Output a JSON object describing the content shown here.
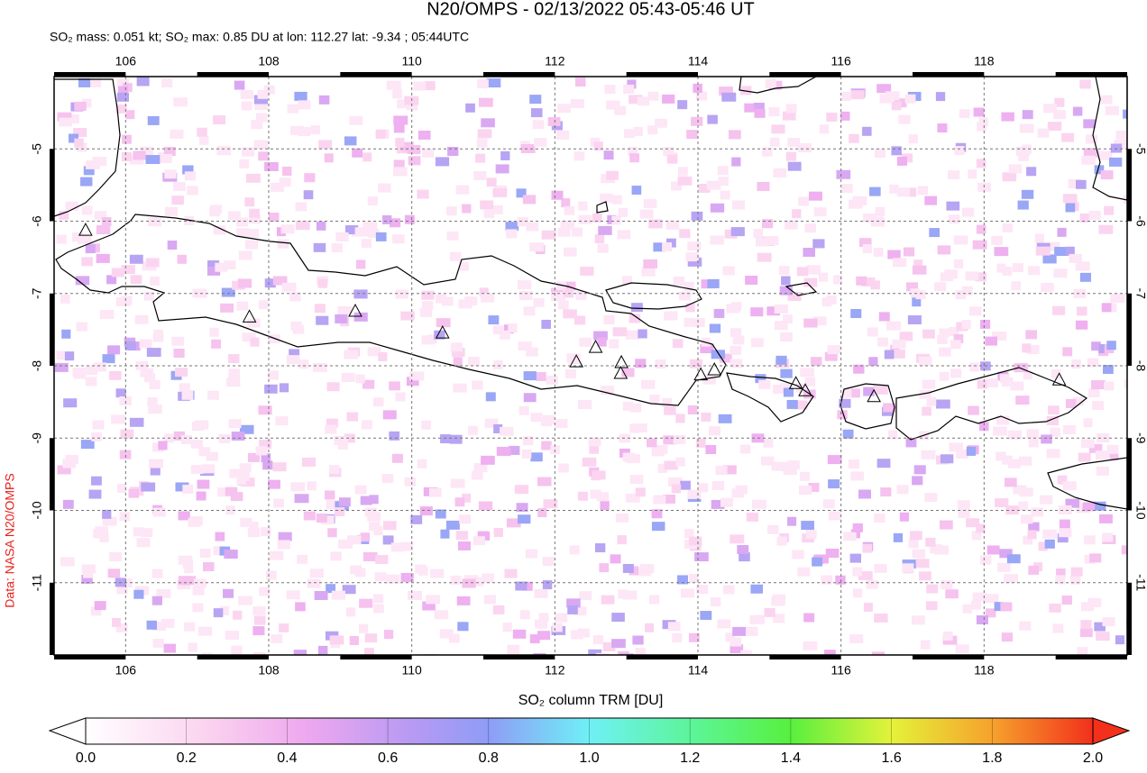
{
  "chart_data": {
    "type": "map",
    "title": "N20/OMPS - 02/13/2022 05:43-05:46 UT",
    "subtitle": "SO₂ mass: 0.051 kt; SO₂ max: 0.85 DU at lon: 112.27 lat: -9.34 ; 05:44UTC",
    "credit": "Data: NASA N20/OMPS",
    "colorbar_label": "SO₂ column TRM [DU]",
    "xlim": [
      105,
      120
    ],
    "ylim": [
      -12,
      -4
    ],
    "xticks": [
      106,
      108,
      110,
      112,
      114,
      116,
      118
    ],
    "yticks": [
      -5,
      -6,
      -7,
      -8,
      -9,
      -10,
      -11
    ],
    "grid": true,
    "clim": [
      0,
      2
    ],
    "cticks": [
      {
        "value": 0,
        "label": "0.0"
      },
      {
        "value": 0.2,
        "label": "0.2"
      },
      {
        "value": 0.4,
        "label": "0.4"
      },
      {
        "value": 0.6,
        "label": "0.6"
      },
      {
        "value": 0.8,
        "label": "0.8"
      },
      {
        "value": 1,
        "label": "1.0"
      },
      {
        "value": 1.2,
        "label": "1.2"
      },
      {
        "value": 1.4,
        "label": "1.4"
      },
      {
        "value": 1.6,
        "label": "1.6"
      },
      {
        "value": 1.8,
        "label": "1.8"
      },
      {
        "value": 2,
        "label": "2.0"
      }
    ],
    "volcanoes": {
      "lon": [
        105.44,
        107.73,
        109.21,
        110.43,
        112.3,
        112.57,
        112.93,
        112.92,
        114.04,
        114.23,
        115.37,
        115.5,
        116.46,
        119.05
      ],
      "lat": [
        -6.12,
        -7.32,
        -7.24,
        -7.54,
        -7.94,
        -7.74,
        -7.95,
        -8.1,
        -8.12,
        -8.05,
        -8.24,
        -8.34,
        -8.42,
        -8.19
      ]
    }
  }
}
